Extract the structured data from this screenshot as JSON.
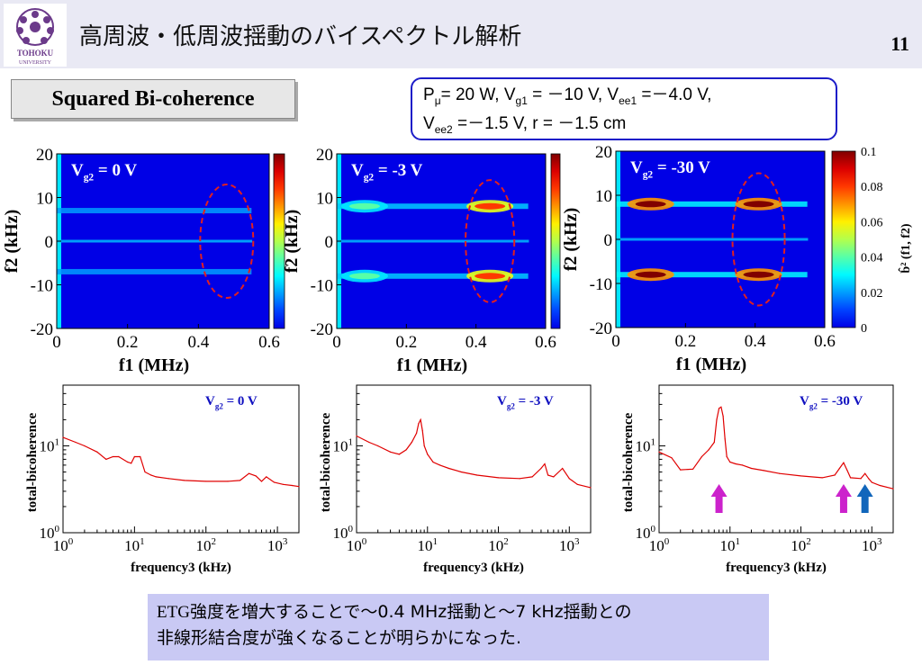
{
  "header": {
    "title": "高周波・低周波揺動のバイスペクトル解析",
    "page_number": "11",
    "logo_text": "TOHOKU UNIVERSITY"
  },
  "section_label": "Squared Bi-coherence",
  "parameters": {
    "line1": [
      {
        "t": "P"
      },
      {
        "sub": "μ"
      },
      {
        "t": "= 20 W, V"
      },
      {
        "sub": "g1"
      },
      {
        "t": " = －10 V, V"
      },
      {
        "sub": "ee1"
      },
      {
        "t": " =－4.0 V,"
      }
    ],
    "line2": [
      {
        "t": "V"
      },
      {
        "sub": "ee2"
      },
      {
        "t": " =－1.5 V, r = －1.5 cm"
      }
    ]
  },
  "conclusion": {
    "line1_prefix": "ETG",
    "line1_rest": "強度を増大することで～0.4 MHz揺動と～7 kHz揺動との",
    "line2": "非線形結合度が強くなることが明らかになった."
  },
  "colors": {
    "ellipse": "#e02020",
    "arrow_magenta": "#cc22cc",
    "arrow_blue": "#1166bb",
    "trace": "#e00000",
    "label_blue": "#1010c0"
  },
  "chart_data": [
    {
      "type": "heatmap",
      "panel_label": "Vg2 = 0 V",
      "label_main": "V",
      "label_sub": "g2",
      "label_tail": " = 0 V",
      "xlabel": "f1 (MHz)",
      "ylabel": "f2 (kHz)",
      "xlim": [
        0,
        0.6
      ],
      "ylim": [
        -20,
        20
      ],
      "xticks": [
        "0",
        "0.2",
        "0.4",
        "0.6"
      ],
      "yticks": [
        "20",
        "10",
        "0",
        "-10",
        "-20"
      ],
      "bands": [
        {
          "f2": 7,
          "f1_min": 0.0,
          "f1_max": 0.55,
          "level": 0.02
        },
        {
          "f2": -7,
          "f1_min": 0.0,
          "f1_max": 0.55,
          "level": 0.02
        }
      ],
      "ellipse": {
        "f1": 0.48,
        "f2": 0,
        "rf1": 0.075,
        "rf2": 13
      }
    },
    {
      "type": "heatmap",
      "panel_label": "Vg2 = -3 V",
      "label_main": "V",
      "label_sub": "g2",
      "label_tail": " = -3 V",
      "xlabel": "f1 (MHz)",
      "ylabel": "f2 (kHz)",
      "xlim": [
        0,
        0.6
      ],
      "ylim": [
        -20,
        20
      ],
      "xticks": [
        "0",
        "0.2",
        "0.4",
        "0.6"
      ],
      "yticks": [
        "20",
        "10",
        "0",
        "-10",
        "-20"
      ],
      "bands": [
        {
          "f2": 8,
          "f1_min": 0.0,
          "f1_max": 0.55,
          "level": 0.025
        },
        {
          "f2": -8,
          "f1_min": 0.0,
          "f1_max": 0.55,
          "level": 0.025
        }
      ],
      "hotspots": [
        {
          "f1": 0.44,
          "f2": 8,
          "level": 0.08
        },
        {
          "f1": 0.44,
          "f2": -8,
          "level": 0.08
        },
        {
          "f1": 0.08,
          "f2": 8,
          "level": 0.04
        },
        {
          "f1": 0.08,
          "f2": -8,
          "level": 0.04
        }
      ],
      "ellipse": {
        "f1": 0.44,
        "f2": 0,
        "rf1": 0.07,
        "rf2": 14
      }
    },
    {
      "type": "heatmap",
      "panel_label": "Vg2 = -30 V",
      "label_main": "V",
      "label_sub": "g2",
      "label_tail": " = -30 V",
      "xlabel": "f1 (MHz)",
      "ylabel": "f2 (kHz)",
      "xlim": [
        0,
        0.6
      ],
      "ylim": [
        -20,
        20
      ],
      "xticks": [
        "0",
        "0.2",
        "0.4",
        "0.6"
      ],
      "yticks": [
        "20",
        "10",
        "0",
        "-10",
        "-20"
      ],
      "colorbar": {
        "label": "b̂² (f1, f2)",
        "ticks": [
          "0.1",
          "0.08",
          "0.06",
          "0.04",
          "0.02",
          "0"
        ],
        "range": [
          0,
          0.1
        ]
      },
      "bands": [
        {
          "f2": 8,
          "f1_min": 0.0,
          "f1_max": 0.55,
          "level": 0.03
        },
        {
          "f2": -8,
          "f1_min": 0.0,
          "f1_max": 0.55,
          "level": 0.03
        }
      ],
      "hotspots": [
        {
          "f1": 0.1,
          "f2": 8,
          "level": 0.1
        },
        {
          "f1": 0.1,
          "f2": -8,
          "level": 0.1
        },
        {
          "f1": 0.41,
          "f2": 8,
          "level": 0.1
        },
        {
          "f1": 0.41,
          "f2": -8,
          "level": 0.1
        }
      ],
      "ellipse": {
        "f1": 0.41,
        "f2": 0,
        "rf1": 0.075,
        "rf2": 15
      }
    },
    {
      "type": "line",
      "panel_label": "Vg2 = 0 V",
      "label_main": "V",
      "label_sub": "g2",
      "label_tail": " = 0 V",
      "xlabel": "frequency3 (kHz)",
      "ylabel": "total-bicoherence",
      "xscale": "log",
      "yscale": "log",
      "xlim": [
        1,
        2000
      ],
      "ylim": [
        1,
        50
      ],
      "x": [
        1,
        1.5,
        2,
        3,
        4,
        5,
        6,
        8,
        9,
        10,
        12,
        14,
        17,
        20,
        30,
        50,
        100,
        200,
        300,
        400,
        500,
        600,
        700,
        900,
        1200,
        1600,
        2000
      ],
      "y": [
        12.5,
        11,
        10,
        8.5,
        7,
        7.5,
        7.5,
        6.5,
        6.3,
        7.5,
        7.5,
        5,
        4.6,
        4.4,
        4.2,
        4.0,
        3.9,
        3.9,
        4.0,
        4.8,
        4.5,
        3.9,
        4.4,
        3.8,
        3.6,
        3.5,
        3.4
      ]
    },
    {
      "type": "line",
      "panel_label": "Vg2 = -3 V",
      "label_main": "V",
      "label_sub": "g2",
      "label_tail": " = -3 V",
      "xlabel": "frequency3 (kHz)",
      "ylabel": "total-bicoherence",
      "xscale": "log",
      "yscale": "log",
      "xlim": [
        1,
        2000
      ],
      "ylim": [
        1,
        50
      ],
      "x": [
        1,
        1.5,
        2,
        3,
        4,
        5,
        6,
        7,
        7.5,
        8,
        8.5,
        9,
        10,
        12,
        15,
        20,
        30,
        50,
        100,
        200,
        300,
        400,
        450,
        500,
        600,
        800,
        1000,
        1300,
        2000
      ],
      "y": [
        13,
        11,
        10,
        8.5,
        8,
        9,
        11,
        14,
        18,
        20,
        15,
        10,
        8,
        6.5,
        6,
        5.5,
        5,
        4.6,
        4.3,
        4.2,
        4.4,
        5.5,
        6.2,
        4.6,
        4.4,
        5.5,
        4.2,
        3.6,
        3.3
      ]
    },
    {
      "type": "line",
      "panel_label": "Vg2 = -30 V",
      "label_main": "V",
      "label_sub": "g2",
      "label_tail": " = -30 V",
      "xlabel": "frequency3 (kHz)",
      "ylabel": "total-bicoherence",
      "xscale": "log",
      "yscale": "log",
      "xlim": [
        1,
        2000
      ],
      "ylim": [
        1,
        50
      ],
      "x": [
        1,
        1.5,
        2,
        3,
        4,
        5,
        6,
        6.5,
        7,
        7.5,
        8,
        8.5,
        9,
        10,
        12,
        15,
        20,
        30,
        50,
        100,
        200,
        300,
        350,
        400,
        450,
        500,
        700,
        800,
        900,
        1000,
        1300,
        2000
      ],
      "y": [
        8.5,
        7.3,
        5.3,
        5.4,
        7.5,
        9,
        11,
        20,
        27,
        28,
        22,
        12,
        7.5,
        6.5,
        6.2,
        6,
        5.5,
        5.2,
        4.8,
        4.5,
        4.3,
        4.6,
        5.5,
        6.4,
        5.2,
        4.3,
        4.2,
        4.8,
        4.2,
        3.8,
        3.5,
        3.2
      ],
      "arrows": [
        {
          "x": 7,
          "color": "magenta"
        },
        {
          "x": 400,
          "color": "magenta"
        },
        {
          "x": 800,
          "color": "blue"
        }
      ]
    }
  ]
}
